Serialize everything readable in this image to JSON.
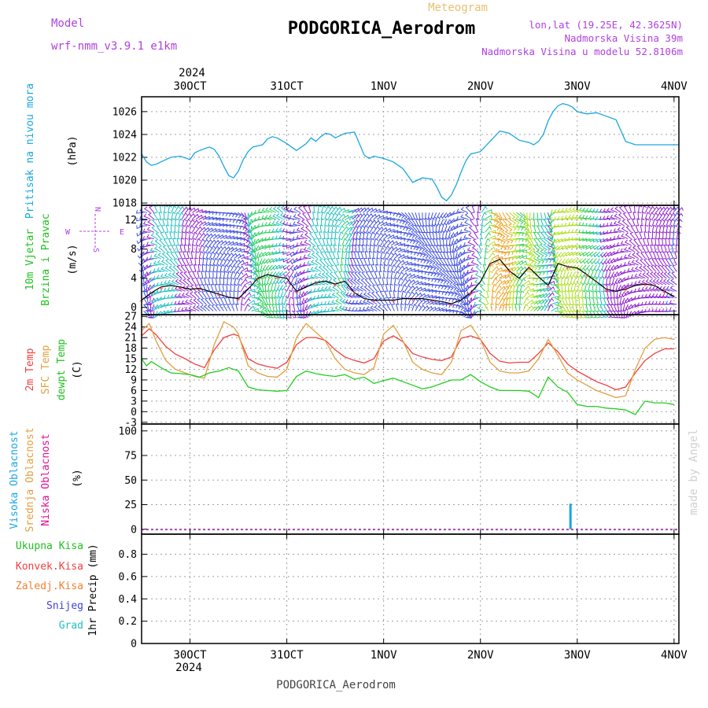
{
  "header": {
    "station": "PODGORICA_Aerodrom",
    "product": "Meteogram",
    "model_label": "Model",
    "model_name": "wrf-nmm_v3.9.1 e1km",
    "lonlat": "lon,lat (19.25E, 42.3625N)",
    "elevation": "Nadmorska Visina 39m",
    "model_elevation": "Nadmorska Visina u modelu 52.8106m",
    "year": "2024",
    "credit": "made by Angel",
    "footer": "PODGORICA_Aerodrom"
  },
  "dates": [
    "30OCT",
    "31OCT",
    "1NOV",
    "2NOV",
    "3NOV",
    "4NOV"
  ],
  "compass": {
    "n": "N",
    "s": "S",
    "e": "E",
    "w": "W"
  },
  "colors": {
    "pressure": "#1aa7e0",
    "t2m": "#f04040",
    "sfc": "#e0a040",
    "dewpoint": "#20d020",
    "high_cloud": "#1aa7e0",
    "mid_cloud": "#e0a040",
    "low_cloud": "#e01090",
    "wind_speed": "#000000",
    "total_precip": "#20c020",
    "conv_precip": "#f04040",
    "frz_precip": "#f08030",
    "snow": "#4040e0",
    "graupel": "#20c0c0"
  },
  "chart_data": [
    {
      "type": "line",
      "title": "",
      "ylabel": [
        "Pritisak na nivou mora",
        "(hPa)"
      ],
      "yticks": [
        1018,
        1020,
        1022,
        1024,
        1026
      ],
      "ylim": [
        1017.8,
        1027.3
      ],
      "xlim": [
        0,
        5.55
      ],
      "grid": true,
      "series": [
        {
          "x": [
            0,
            0.05,
            0.1,
            0.15,
            0.2,
            0.3,
            0.4,
            0.5,
            0.55,
            0.6,
            0.7,
            0.75,
            0.8,
            0.85,
            0.9,
            0.95,
            1.0,
            1.05,
            1.1,
            1.15,
            1.2,
            1.25,
            1.3,
            1.35,
            1.4,
            1.5,
            1.6,
            1.7,
            1.75,
            1.8,
            1.85,
            1.9,
            1.95,
            2.0,
            2.1,
            2.2,
            2.25,
            2.3,
            2.35,
            2.4,
            2.45,
            2.5,
            2.6,
            2.7,
            2.8,
            2.9,
            3.0,
            3.05,
            3.1,
            3.15,
            3.2,
            3.25,
            3.3,
            3.35,
            3.4,
            3.45,
            3.5,
            3.6,
            3.7,
            3.8,
            3.9,
            4.0,
            4.05,
            4.1,
            4.15,
            4.2,
            4.25,
            4.3,
            4.35,
            4.4,
            4.45,
            4.5,
            4.6,
            4.7,
            4.8,
            4.9,
            5.0,
            5.1,
            5.2,
            5.3,
            5.4,
            5.5,
            5.55
          ],
          "y": [
            1022.3,
            1021.6,
            1021.3,
            1021.4,
            1021.6,
            1022.0,
            1022.1,
            1021.8,
            1022.4,
            1022.6,
            1022.9,
            1022.7,
            1022.1,
            1021.2,
            1020.4,
            1020.2,
            1020.8,
            1021.8,
            1022.5,
            1022.9,
            1023.0,
            1023.1,
            1023.6,
            1023.8,
            1023.7,
            1023.2,
            1022.6,
            1023.2,
            1023.7,
            1023.4,
            1023.8,
            1024.1,
            1024.0,
            1023.7,
            1024.1,
            1024.2,
            1023.2,
            1022.2,
            1021.9,
            1022.1,
            1022.0,
            1021.9,
            1021.6,
            1021.0,
            1019.8,
            1020.2,
            1020.1,
            1019.4,
            1018.5,
            1018.2,
            1018.7,
            1019.6,
            1020.7,
            1021.7,
            1022.3,
            1022.4,
            1022.5,
            1023.4,
            1024.3,
            1024.1,
            1023.5,
            1023.3,
            1023.1,
            1023.4,
            1024.0,
            1025.2,
            1026.0,
            1026.5,
            1026.7,
            1026.6,
            1026.4,
            1026.0,
            1025.8,
            1025.9,
            1025.6,
            1025.3,
            1023.4,
            1023.1,
            1023.1,
            1023.1,
            1023.1,
            1023.1,
            1023.1
          ]
        }
      ]
    },
    {
      "type": "line",
      "title": "",
      "ylabel": [
        "10m Vjetar",
        "Brzina i Pravac",
        "(m/s)"
      ],
      "yticks": [
        0,
        4,
        8,
        12
      ],
      "ylim": [
        -1,
        14
      ],
      "xlim": [
        0,
        5.55
      ],
      "grid": true,
      "series": [
        {
          "name": "",
          "x": [
            0,
            0.1,
            0.2,
            0.3,
            0.4,
            0.5,
            0.6,
            0.7,
            0.8,
            0.9,
            1.0,
            1.1,
            1.2,
            1.3,
            1.4,
            1.5,
            1.6,
            1.7,
            1.8,
            1.9,
            2.0,
            2.1,
            2.2,
            2.3,
            2.4,
            2.5,
            2.6,
            2.7,
            2.8,
            2.9,
            3.0,
            3.1,
            3.2,
            3.3,
            3.4,
            3.5,
            3.6,
            3.7,
            3.8,
            3.9,
            4.0,
            4.1,
            4.2,
            4.3,
            4.4,
            4.5,
            4.6,
            4.7,
            4.8,
            4.9,
            5.0,
            5.1,
            5.2,
            5.3,
            5.4,
            5.5
          ],
          "y": [
            1.0,
            2.0,
            2.8,
            3.0,
            2.8,
            2.5,
            2.6,
            2.2,
            1.8,
            1.4,
            1.2,
            2.5,
            4.0,
            4.5,
            4.2,
            4.0,
            2.2,
            2.8,
            3.4,
            3.6,
            3.2,
            3.6,
            2.0,
            1.2,
            1.0,
            1.0,
            1.0,
            1.2,
            1.2,
            1.2,
            1.0,
            0.8,
            0.5,
            1.0,
            2.0,
            3.5,
            6.0,
            6.6,
            5.0,
            4.0,
            5.5,
            4.2,
            3.0,
            6.0,
            5.6,
            5.4,
            4.5,
            3.5,
            2.5,
            2.2,
            2.5,
            3.0,
            3.2,
            3.0,
            2.2,
            1.5
          ]
        }
      ]
    },
    {
      "type": "line",
      "title": "",
      "ylabel": [
        "2m Temp",
        "SFC Temp",
        "dewpt Temp",
        "(C)"
      ],
      "yticks": [
        -3,
        0,
        3,
        6,
        9,
        12,
        15,
        18,
        21,
        24,
        27
      ],
      "ylim": [
        -3.5,
        27.5
      ],
      "xlim": [
        0,
        5.55
      ],
      "grid": true,
      "series": [
        {
          "name": "2m Temp",
          "x": [
            0,
            0.08,
            0.15,
            0.25,
            0.35,
            0.45,
            0.55,
            0.65,
            0.75,
            0.85,
            0.95,
            1.0,
            1.1,
            1.2,
            1.3,
            1.4,
            1.5,
            1.6,
            1.7,
            1.8,
            1.9,
            2.0,
            2.1,
            2.2,
            2.3,
            2.4,
            2.5,
            2.6,
            2.7,
            2.8,
            2.9,
            3.0,
            3.1,
            3.2,
            3.3,
            3.4,
            3.5,
            3.6,
            3.7,
            3.8,
            3.9,
            4.0,
            4.1,
            4.2,
            4.3,
            4.4,
            4.5,
            4.6,
            4.7,
            4.8,
            4.9,
            5.0,
            5.1,
            5.2,
            5.3,
            5.4,
            5.5
          ],
          "y": [
            21.5,
            23.5,
            21.8,
            18.5,
            16.3,
            15.0,
            13.5,
            12.5,
            17.5,
            21.0,
            22.0,
            21.5,
            15.0,
            13.5,
            12.8,
            12.3,
            14.0,
            19.0,
            21.0,
            21.0,
            20.2,
            17.5,
            15.5,
            14.5,
            13.8,
            15.0,
            20.0,
            21.5,
            19.8,
            16.5,
            15.5,
            14.8,
            14.5,
            15.5,
            20.8,
            21.5,
            20.5,
            16.5,
            14.3,
            13.8,
            14.0,
            14.0,
            16.5,
            19.5,
            17.0,
            13.5,
            11.5,
            10.0,
            8.5,
            7.5,
            6.2,
            7.0,
            11.0,
            14.5,
            16.5,
            17.8,
            17.8
          ]
        },
        {
          "name": "SFC Temp",
          "x": [
            0,
            0.08,
            0.15,
            0.25,
            0.35,
            0.45,
            0.55,
            0.65,
            0.75,
            0.85,
            0.95,
            1.0,
            1.1,
            1.2,
            1.3,
            1.4,
            1.5,
            1.6,
            1.7,
            1.8,
            1.9,
            2.0,
            2.1,
            2.2,
            2.3,
            2.4,
            2.5,
            2.6,
            2.7,
            2.8,
            2.9,
            3.0,
            3.1,
            3.2,
            3.3,
            3.4,
            3.5,
            3.6,
            3.7,
            3.8,
            3.9,
            4.0,
            4.1,
            4.2,
            4.3,
            4.4,
            4.5,
            4.6,
            4.7,
            4.8,
            4.9,
            5.0,
            5.1,
            5.2,
            5.3,
            5.4,
            5.5
          ],
          "y": [
            23.0,
            25.0,
            20.0,
            14.5,
            12.0,
            11.0,
            10.0,
            9.5,
            19.0,
            25.5,
            24.0,
            22.0,
            13.0,
            11.0,
            10.0,
            9.8,
            12.0,
            21.0,
            25.0,
            22.5,
            20.0,
            15.0,
            12.0,
            11.0,
            10.5,
            12.5,
            22.0,
            24.5,
            20.0,
            14.0,
            12.0,
            11.0,
            10.5,
            14.0,
            23.0,
            24.5,
            20.5,
            14.0,
            11.5,
            11.0,
            11.0,
            11.5,
            15.0,
            20.5,
            16.0,
            11.0,
            9.0,
            7.5,
            6.0,
            5.0,
            4.0,
            4.5,
            12.0,
            18.0,
            20.5,
            21.0,
            20.5
          ]
        },
        {
          "name": "dewpt Temp",
          "x": [
            0,
            0.05,
            0.1,
            0.2,
            0.3,
            0.4,
            0.5,
            0.6,
            0.7,
            0.8,
            0.9,
            1.0,
            1.1,
            1.2,
            1.3,
            1.4,
            1.5,
            1.6,
            1.7,
            1.8,
            1.9,
            2.0,
            2.1,
            2.2,
            2.3,
            2.4,
            2.5,
            2.6,
            2.7,
            2.8,
            2.9,
            3.0,
            3.1,
            3.2,
            3.3,
            3.4,
            3.5,
            3.6,
            3.7,
            3.8,
            3.9,
            4.0,
            4.1,
            4.2,
            4.3,
            4.4,
            4.5,
            4.6,
            4.7,
            4.8,
            4.9,
            5.0,
            5.1,
            5.2,
            5.3,
            5.4,
            5.5
          ],
          "y": [
            15.0,
            13.0,
            14.2,
            12.5,
            11.0,
            10.8,
            10.5,
            9.8,
            11.0,
            11.5,
            12.5,
            11.5,
            7.0,
            6.2,
            6.0,
            5.8,
            6.0,
            10.0,
            11.5,
            10.8,
            10.3,
            10.0,
            10.5,
            9.2,
            9.8,
            8.0,
            8.8,
            9.5,
            8.5,
            7.5,
            6.5,
            7.0,
            8.0,
            9.0,
            9.0,
            10.5,
            8.5,
            7.0,
            6.0,
            6.0,
            6.0,
            5.8,
            4.0,
            9.8,
            7.0,
            5.5,
            2.0,
            1.5,
            1.5,
            1.0,
            0.8,
            0.5,
            -0.8,
            3.0,
            2.5,
            2.5,
            2.0
          ]
        }
      ]
    },
    {
      "type": "bar",
      "title": "",
      "ylabel": [
        "Visoka Oblacnost",
        "Srednja Oblacnost",
        "Niska Oblacnost",
        "(%)"
      ],
      "yticks": [
        0,
        25,
        50,
        75,
        100
      ],
      "ylim": [
        -5,
        107
      ],
      "xlim": [
        0,
        5.55
      ],
      "grid": true,
      "series": [
        {
          "name": "Visoka Oblacnost",
          "x": [
            4.43
          ],
          "values": [
            26
          ]
        },
        {
          "name": "Srednja Oblacnost",
          "x": [],
          "values": []
        },
        {
          "name": "Niska Oblacnost",
          "x": [],
          "values": []
        }
      ]
    },
    {
      "type": "bar",
      "title": "",
      "ylabel": [
        "1hr Precip (mm)"
      ],
      "legend_items": [
        "Ukupna Kisa",
        "Konvek.Kisa",
        "Zaledj.Kisa",
        "Snijeg",
        "Grad"
      ],
      "yticks": [
        0,
        0.2,
        0.4,
        0.6,
        0.8
      ],
      "ylim": [
        0,
        0.98
      ],
      "xlim": [
        0,
        5.55
      ],
      "grid": true,
      "series": [
        {
          "name": "Ukupna Kisa",
          "x": [],
          "values": []
        },
        {
          "name": "Konvek.Kisa",
          "x": [],
          "values": []
        },
        {
          "name": "Zaledj.Kisa",
          "x": [],
          "values": []
        },
        {
          "name": "Snijeg",
          "x": [],
          "values": []
        },
        {
          "name": "Grad",
          "x": [],
          "values": []
        }
      ]
    }
  ]
}
